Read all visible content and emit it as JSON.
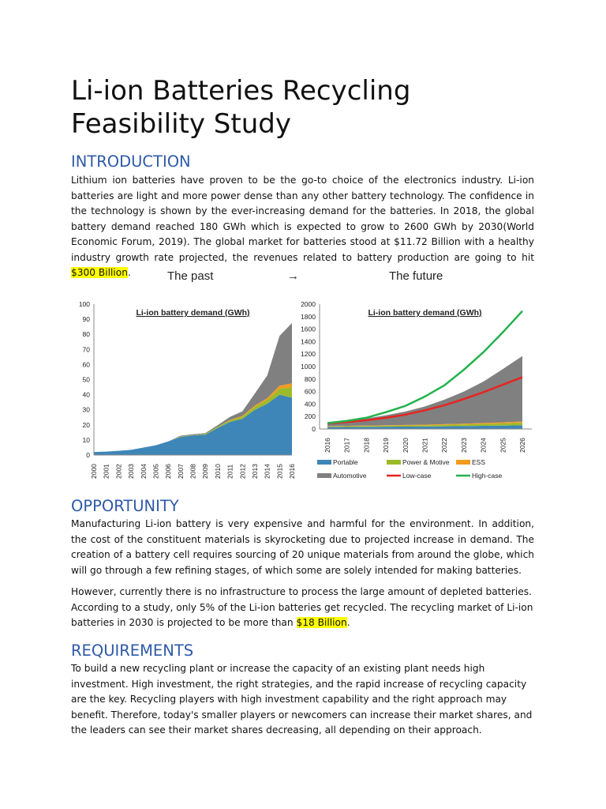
{
  "title": "Li-ion Batteries Recycling Feasibility Study",
  "sections": {
    "intro": {
      "heading": "INTRODUCTION",
      "text": "Lithium ion batteries have proven to be the go-to choice of the electronics industry. Li-ion batteries are light and more power dense than any other battery technology. The confidence in the technology is shown by the ever-increasing demand for the batteries. In 2018, the global battery demand reached 180 GWh which is expected to grow to 2600 GWh by 2030(World Economic Forum, 2019). The global market for batteries stood at $11.72 Billion with a healthy industry growth rate projected, the revenues related to battery production are going to hit ",
      "highlight": "$300 Billion",
      "end": "."
    },
    "opportunity": {
      "heading": "OPPORTUNITY",
      "p1": "Manufacturing Li-ion battery is very expensive and harmful for the environment. In addition, the cost of the constituent materials is skyrocketing due to projected increase in demand. The creation of a battery cell requires sourcing of 20 unique materials from around the globe, which will go through a few refining stages, of which some are solely intended for making batteries.",
      "p2": "However, currently there is no infrastructure to process the large amount of depleted batteries. According to a study, only 5% of the Li-ion batteries get recycled. The recycling market of Li-ion batteries in 2030 is projected to be more than ",
      "highlight": "$18 Billion",
      "end": "."
    },
    "requirements": {
      "heading": "REQUIREMENTS",
      "text": "To build a new recycling plant or increase the capacity of an existing plant needs high investment. High investment, the right strategies, and the rapid increase of recycling capacity are the key. Recycling players with high investment capability and the right approach may benefit. Therefore, today's smaller players or newcomers can increase their market shares, and the leaders can see their market shares decreasing, all depending on their approach."
    }
  },
  "figure": {
    "past_label": "The past",
    "arrow": "→",
    "future_label": "The future"
  },
  "chart_data": [
    {
      "type": "area",
      "stacked": true,
      "title": "Li-ion battery demand (GWh)",
      "ylim": [
        0,
        100
      ],
      "yticks": [
        0,
        10,
        20,
        30,
        40,
        50,
        60,
        70,
        80,
        90,
        100
      ],
      "x": [
        "2000",
        "2001",
        "2002",
        "2003",
        "2004",
        "2005",
        "2006",
        "2007",
        "2008",
        "2009",
        "2010",
        "2011",
        "2012",
        "2013",
        "2014",
        "2015",
        "2016"
      ],
      "series": [
        {
          "name": "Portable",
          "color": "#3e86b8",
          "values": [
            2,
            2.3,
            2.8,
            3.5,
            5,
            6.5,
            9,
            12,
            13,
            13.5,
            18,
            22,
            24,
            30,
            34,
            40,
            38
          ]
        },
        {
          "name": "Power & Motive",
          "color": "#9bbb2a",
          "values": [
            0,
            0,
            0,
            0,
            0,
            0,
            0,
            0.3,
            0.3,
            0.5,
            0.8,
            1,
            1.5,
            2,
            2.5,
            4,
            7
          ]
        },
        {
          "name": "ESS",
          "color": "#f39a1e",
          "values": [
            0,
            0,
            0,
            0,
            0,
            0,
            0,
            0,
            0,
            0,
            0,
            0.3,
            0.5,
            0.8,
            1.2,
            2,
            2.5
          ]
        },
        {
          "name": "Automotive",
          "color": "#808080",
          "values": [
            0,
            0,
            0,
            0,
            0,
            0,
            0,
            0.5,
            0.5,
            0.5,
            1,
            2,
            3,
            8,
            15,
            33,
            40
          ]
        }
      ]
    },
    {
      "type": "area+line",
      "stacked": true,
      "title": "Li-ion battery demand (GWh)",
      "ylim": [
        0,
        2000
      ],
      "yticks": [
        0,
        200,
        400,
        600,
        800,
        1000,
        1200,
        1400,
        1600,
        1800,
        2000
      ],
      "x": [
        "2016",
        "2017",
        "2018",
        "2019",
        "2020",
        "2021",
        "2022",
        "2023",
        "2024",
        "2025",
        "2026"
      ],
      "series": [
        {
          "name": "Portable",
          "color": "#3e86b8",
          "values": [
            30,
            32,
            34,
            36,
            38,
            40,
            43,
            46,
            50,
            54,
            60
          ]
        },
        {
          "name": "Power & Motive",
          "color": "#9bbb2a",
          "values": [
            10,
            12,
            14,
            16,
            18,
            20,
            23,
            26,
            30,
            35,
            40
          ]
        },
        {
          "name": "ESS",
          "color": "#f39a1e",
          "values": [
            5,
            6,
            7,
            8,
            9,
            10,
            12,
            14,
            16,
            18,
            20
          ]
        },
        {
          "name": "Automotive",
          "color": "#808080",
          "values": [
            45,
            80,
            115,
            160,
            215,
            290,
            392,
            514,
            664,
            853,
            1050
          ]
        }
      ],
      "lines": [
        {
          "name": "Low-case",
          "color": "#e8231f",
          "values": [
            90,
            110,
            140,
            180,
            230,
            300,
            380,
            480,
            590,
            710,
            830
          ]
        },
        {
          "name": "High-case",
          "color": "#22b24c",
          "values": [
            95,
            130,
            180,
            270,
            370,
            520,
            700,
            950,
            1230,
            1550,
            1890
          ]
        }
      ],
      "legend": "bottom"
    }
  ]
}
